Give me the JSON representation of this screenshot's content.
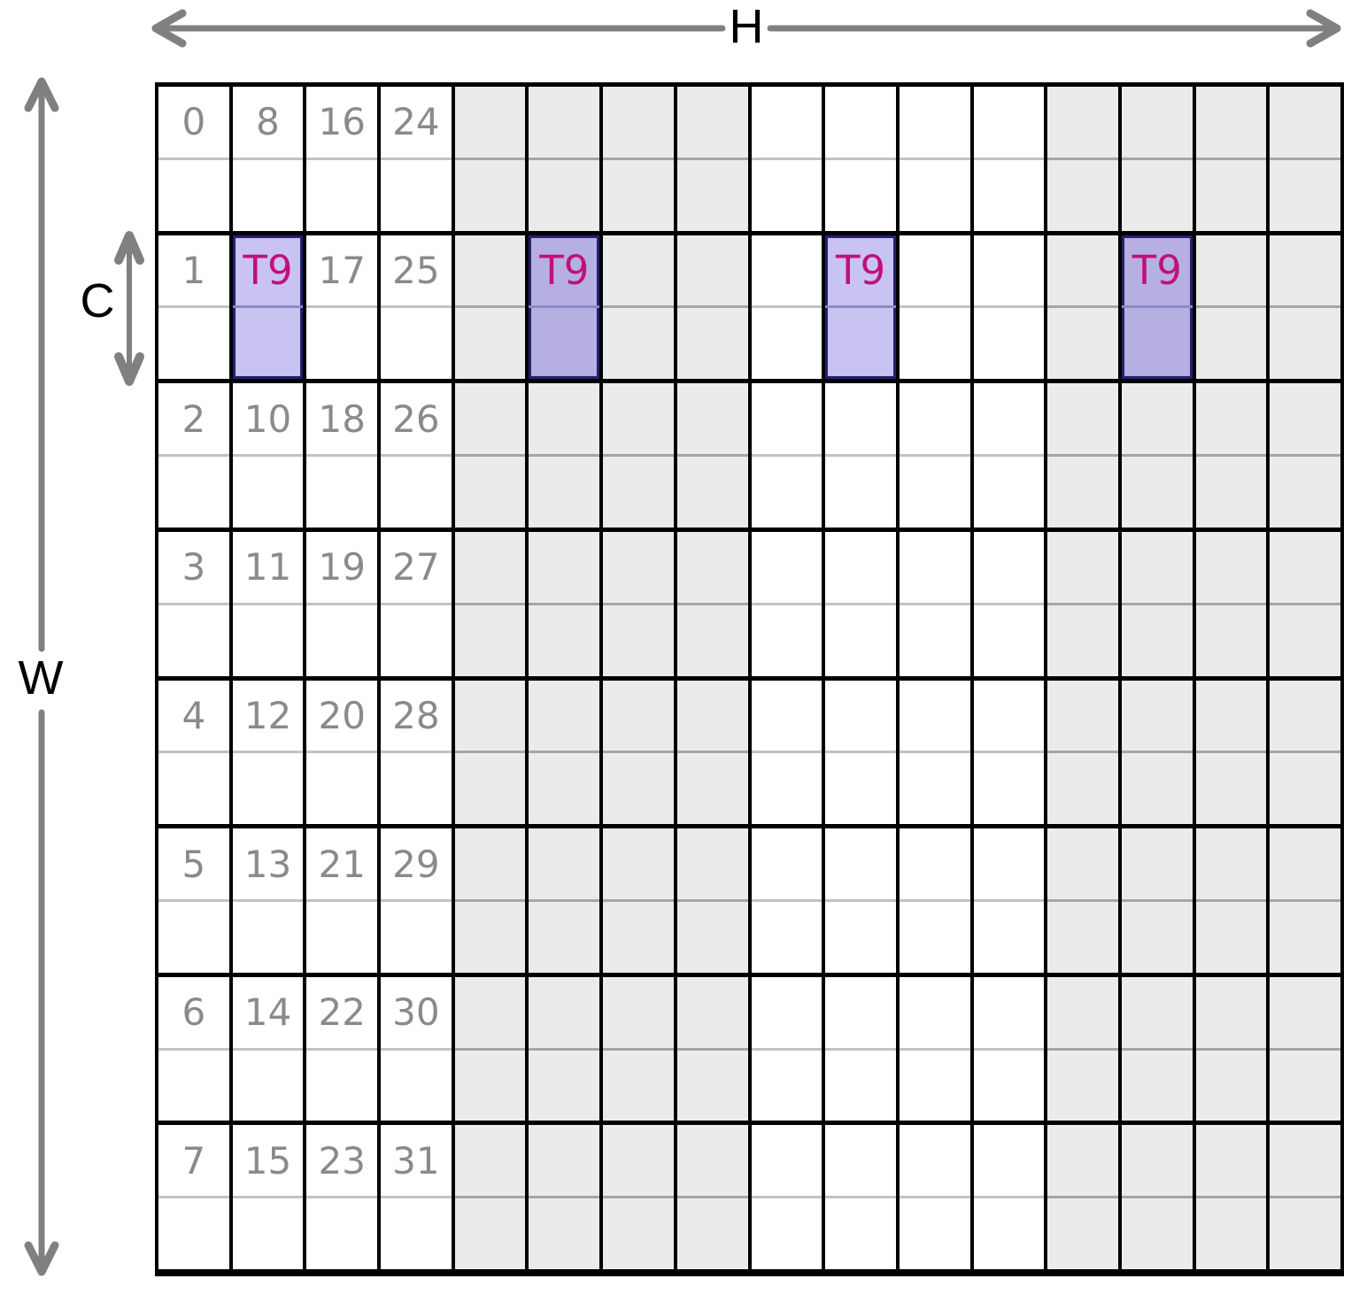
{
  "labels": {
    "h": "H",
    "w": "W",
    "c": "C"
  },
  "highlight": {
    "label": "T9",
    "row": 1,
    "columns": [
      1,
      5,
      9,
      13
    ]
  },
  "grid": {
    "num_columns": 16,
    "num_rows": 8,
    "shaded_columns": [
      4,
      5,
      6,
      7,
      12,
      13,
      14,
      15
    ],
    "rows": [
      {
        "numbers": [
          "0",
          "8",
          "16",
          "24"
        ]
      },
      {
        "numbers": [
          "1",
          "",
          "17",
          "25"
        ]
      },
      {
        "numbers": [
          "2",
          "10",
          "18",
          "26"
        ]
      },
      {
        "numbers": [
          "3",
          "11",
          "19",
          "27"
        ]
      },
      {
        "numbers": [
          "4",
          "12",
          "20",
          "28"
        ]
      },
      {
        "numbers": [
          "5",
          "13",
          "21",
          "29"
        ]
      },
      {
        "numbers": [
          "6",
          "14",
          "22",
          "30"
        ]
      },
      {
        "numbers": [
          "7",
          "15",
          "23",
          "31"
        ]
      }
    ]
  },
  "colors": {
    "background": "#ffffff",
    "grid_line": "#000000",
    "shaded_cell": "#ebebeb",
    "cell_divider": "#c2c2c2",
    "cell_divider_shaded": "#a6a6a6",
    "index_text": "#8a8a8a",
    "arrow": "#808080",
    "dimension_label_text": "#000000",
    "highlight_fill_light": "#c8c3f1",
    "highlight_fill_dark": "#b5b0e1",
    "highlight_border": "#23206f",
    "highlight_divider": "#8d88c8",
    "highlight_text": "#c01178"
  }
}
